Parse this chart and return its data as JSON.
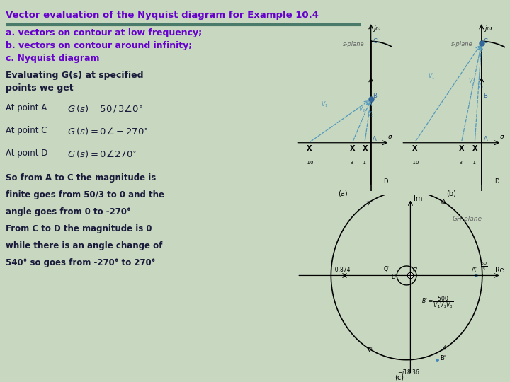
{
  "title": "Vector evaluation of the Nyquist diagram for Example 10.4",
  "subtitle_a": "a. vectors on contour at low frequency;",
  "subtitle_b": "b. vectors on contour around infinity;",
  "subtitle_c": "c. Nyquist diagram",
  "body_line1": "Evaluating G(s) at specified",
  "body_line2": "points we get",
  "summary_line1": "So from A to C the magnitude is",
  "summary_line2": "finite goes from 50/3 to 0 and the",
  "summary_line3": "angle goes from 0 to -270°",
  "summary_line4": "From C to D the magnitude is 0",
  "summary_line5": "while there is an angle change of",
  "summary_line6": "540° so goes from -270° to 270°",
  "bg_color": "#c8d8c0",
  "title_color": "#6600cc",
  "separator_color": "#4a7a6a",
  "bold_text_color": "#1a1a3a",
  "diagram_bg": "#ffffff",
  "vector_color": "#5599bb",
  "point_color": "#336699"
}
